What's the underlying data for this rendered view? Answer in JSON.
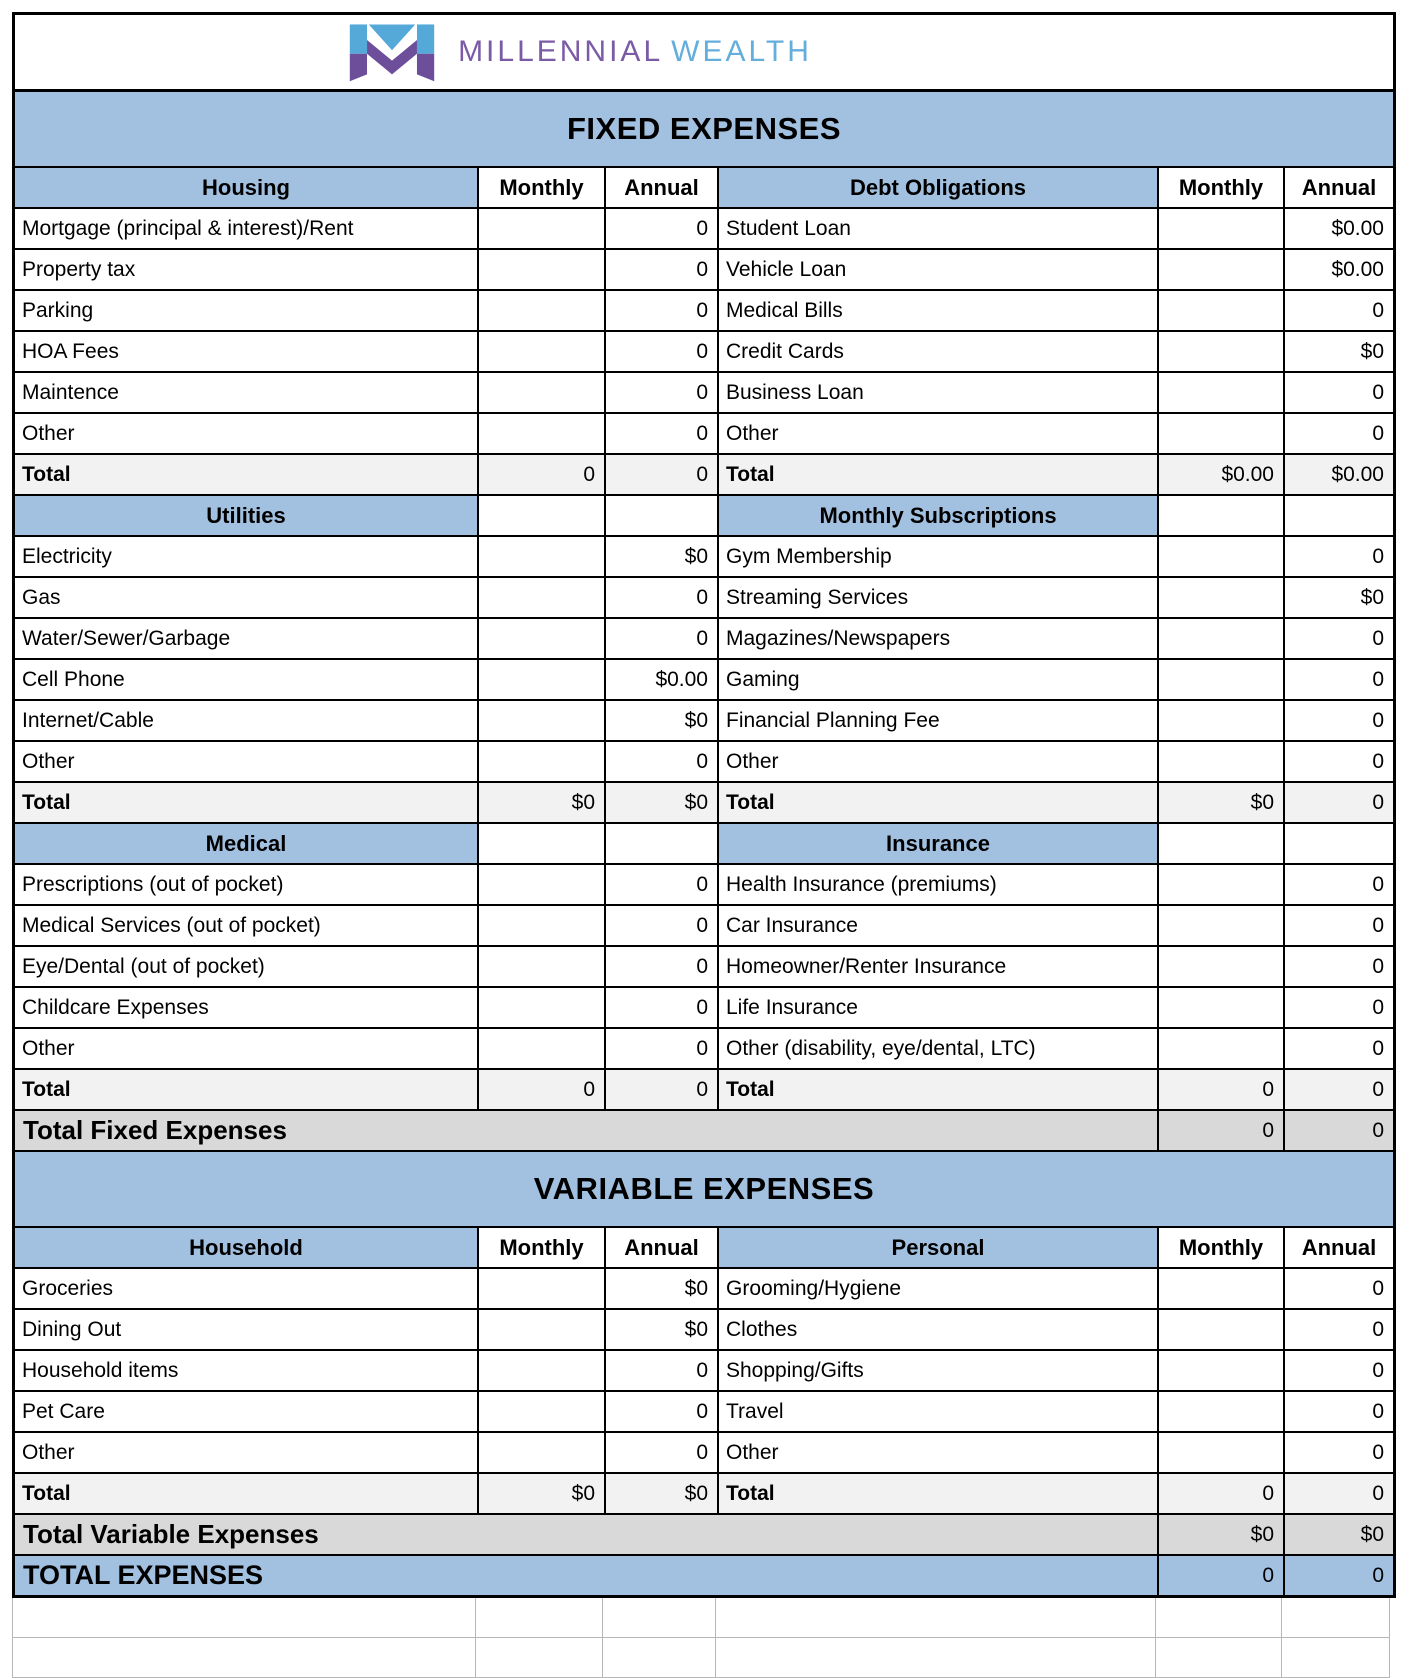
{
  "logo": {
    "brand_part1": "MILLENNIAL",
    "brand_part2": "WEALTH",
    "icon": "millennial-wealth-m-monogram"
  },
  "colors": {
    "banner_blue": "#A2C1E1",
    "total_row_gray": "#F2F2F2",
    "grand_total_gray": "#D9D9D9",
    "empty_grid_gray": "#B7B7B7",
    "logo_purple": "#7B5AA6",
    "logo_blue": "#64AEDC",
    "logo_icon_blue": "#55A9D8",
    "logo_icon_purple": "#6C4E9B",
    "grid_black": "#000000"
  },
  "trailing_empty_rows": 2,
  "sections": [
    {
      "banner": "FIXED EXPENSES",
      "rows": [
        {
          "t": "head",
          "cells": [
            "Housing",
            "Monthly",
            "Annual",
            "Debt Obligations",
            "Monthly",
            "Annual"
          ]
        },
        {
          "t": "data",
          "cells": [
            "Mortgage (principal & interest)/Rent",
            "",
            "0",
            "Student Loan",
            "",
            "$0.00"
          ]
        },
        {
          "t": "data",
          "cells": [
            "Property tax",
            "",
            "0",
            "Vehicle Loan",
            "",
            "$0.00"
          ]
        },
        {
          "t": "data",
          "cells": [
            "Parking",
            "",
            "0",
            "Medical Bills",
            "",
            "0"
          ]
        },
        {
          "t": "data",
          "cells": [
            "HOA Fees",
            "",
            "0",
            "Credit Cards",
            "",
            "$0"
          ]
        },
        {
          "t": "data",
          "cells": [
            "Maintence",
            "",
            "0",
            "Business Loan",
            "",
            "0"
          ]
        },
        {
          "t": "data",
          "cells": [
            "Other",
            "",
            "0",
            "Other",
            "",
            "0"
          ]
        },
        {
          "t": "total",
          "cells": [
            "Total",
            "0",
            "0",
            "Total",
            "$0.00",
            "$0.00"
          ]
        },
        {
          "t": "sec",
          "cells": [
            "Utilities",
            "",
            "",
            "Monthly Subscriptions",
            "",
            ""
          ]
        },
        {
          "t": "data",
          "cells": [
            "Electricity",
            "",
            "$0",
            "Gym Membership",
            "",
            "0"
          ]
        },
        {
          "t": "data",
          "cells": [
            "Gas",
            "",
            "0",
            "Streaming Services",
            "",
            "$0"
          ]
        },
        {
          "t": "data",
          "cells": [
            "Water/Sewer/Garbage",
            "",
            "0",
            "Magazines/Newspapers",
            "",
            "0"
          ]
        },
        {
          "t": "data",
          "cells": [
            "Cell Phone",
            "",
            "$0.00",
            "Gaming",
            "",
            "0"
          ]
        },
        {
          "t": "data",
          "cells": [
            "Internet/Cable",
            "",
            "$0",
            "Financial Planning Fee",
            "",
            "0"
          ]
        },
        {
          "t": "data",
          "cells": [
            "Other",
            "",
            "0",
            "Other",
            "",
            "0"
          ]
        },
        {
          "t": "total",
          "cells": [
            "Total",
            "$0",
            "$0",
            "Total",
            "$0",
            "0"
          ]
        },
        {
          "t": "sec",
          "cells": [
            "Medical",
            "",
            "",
            "Insurance",
            "",
            ""
          ]
        },
        {
          "t": "data",
          "cells": [
            "Prescriptions (out of pocket)",
            "",
            "0",
            "Health Insurance (premiums)",
            "",
            "0"
          ]
        },
        {
          "t": "data",
          "cells": [
            "Medical Services (out of pocket)",
            "",
            "0",
            "Car Insurance",
            "",
            "0"
          ]
        },
        {
          "t": "data",
          "cells": [
            "Eye/Dental (out of pocket)",
            "",
            "0",
            "Homeowner/Renter Insurance",
            "",
            "0"
          ]
        },
        {
          "t": "data",
          "cells": [
            "Childcare Expenses",
            "",
            "0",
            "Life Insurance",
            "",
            "0"
          ]
        },
        {
          "t": "data",
          "cells": [
            "Other",
            "",
            "0",
            "Other (disability, eye/dental, LTC)",
            "",
            "0"
          ]
        },
        {
          "t": "total",
          "cells": [
            "Total",
            "0",
            "0",
            "Total",
            "0",
            "0"
          ]
        },
        {
          "t": "gray",
          "label": "Total Fixed Expenses",
          "monthly": "0",
          "annual": "0"
        }
      ]
    },
    {
      "banner": "VARIABLE EXPENSES",
      "rows": [
        {
          "t": "head",
          "cells": [
            "Household",
            "Monthly",
            "Annual",
            "Personal",
            "Monthly",
            "Annual"
          ]
        },
        {
          "t": "data",
          "cells": [
            "Groceries",
            "",
            "$0",
            "Grooming/Hygiene",
            "",
            "0"
          ]
        },
        {
          "t": "data",
          "cells": [
            "Dining Out",
            "",
            "$0",
            "Clothes",
            "",
            "0"
          ]
        },
        {
          "t": "data",
          "cells": [
            "Household items",
            "",
            "0",
            "Shopping/Gifts",
            "",
            "0"
          ]
        },
        {
          "t": "data",
          "cells": [
            "Pet Care",
            "",
            "0",
            "Travel",
            "",
            "0"
          ]
        },
        {
          "t": "data",
          "cells": [
            "Other",
            "",
            "0",
            "Other",
            "",
            "0"
          ]
        },
        {
          "t": "total",
          "cells": [
            "Total",
            "$0",
            "$0",
            "Total",
            "0",
            "0"
          ]
        },
        {
          "t": "gray",
          "label": "Total Variable Expenses",
          "monthly": "$0",
          "annual": "$0"
        },
        {
          "t": "blue",
          "label": "TOTAL EXPENSES",
          "monthly": "0",
          "annual": "0"
        }
      ]
    }
  ]
}
